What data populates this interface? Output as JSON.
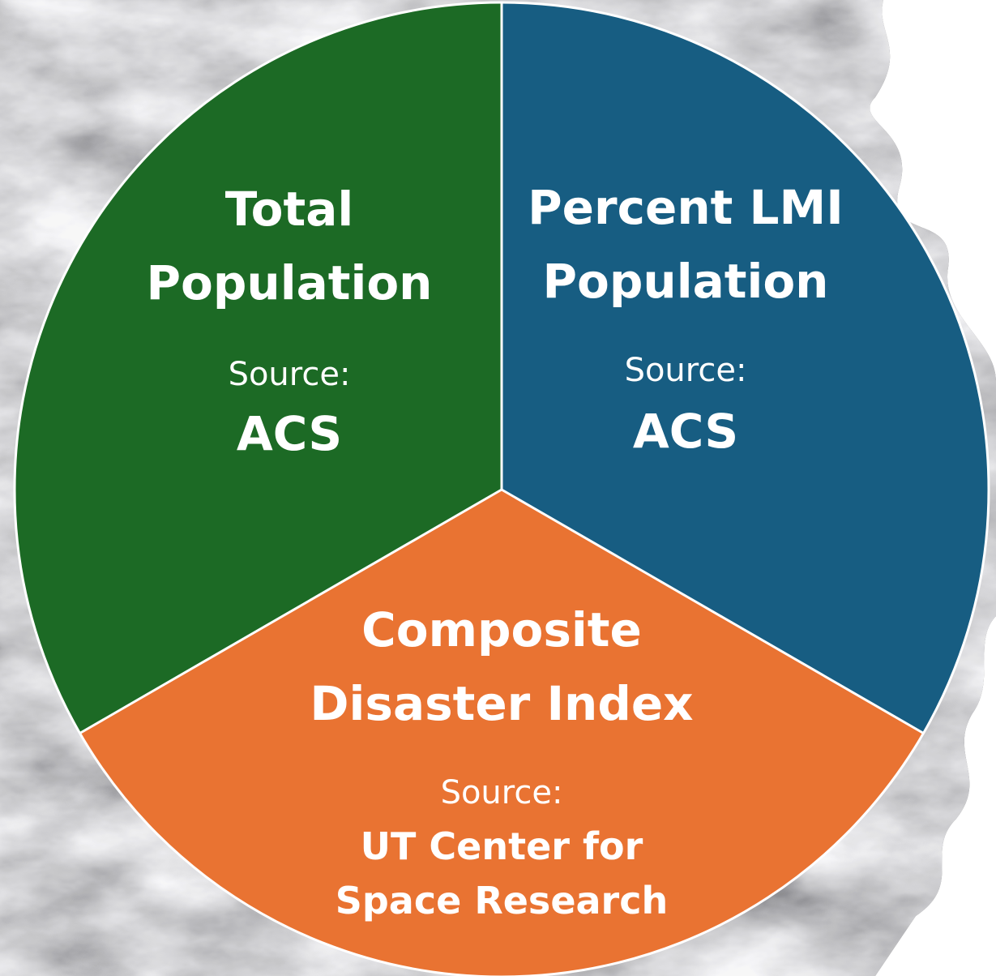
{
  "diagram": {
    "segments": [
      {
        "id": "total-population",
        "title_lines": [
          "Total",
          "Population"
        ],
        "source_label": "Source:",
        "source_lines": [
          "ACS"
        ],
        "color": "#1c6a25"
      },
      {
        "id": "percent-lmi-population",
        "title_lines": [
          "Percent LMI",
          "Population"
        ],
        "source_label": "Source:",
        "source_lines": [
          "ACS"
        ],
        "color": "#175d82"
      },
      {
        "id": "composite-disaster-index",
        "title_lines": [
          "Composite",
          "Disaster Index"
        ],
        "source_label": "Source:",
        "source_lines": [
          "UT Center for",
          "Space Research"
        ],
        "color": "#e97332"
      }
    ],
    "background_theme": "satellite-cloud-imagery",
    "divider_color": "#ffffff"
  }
}
